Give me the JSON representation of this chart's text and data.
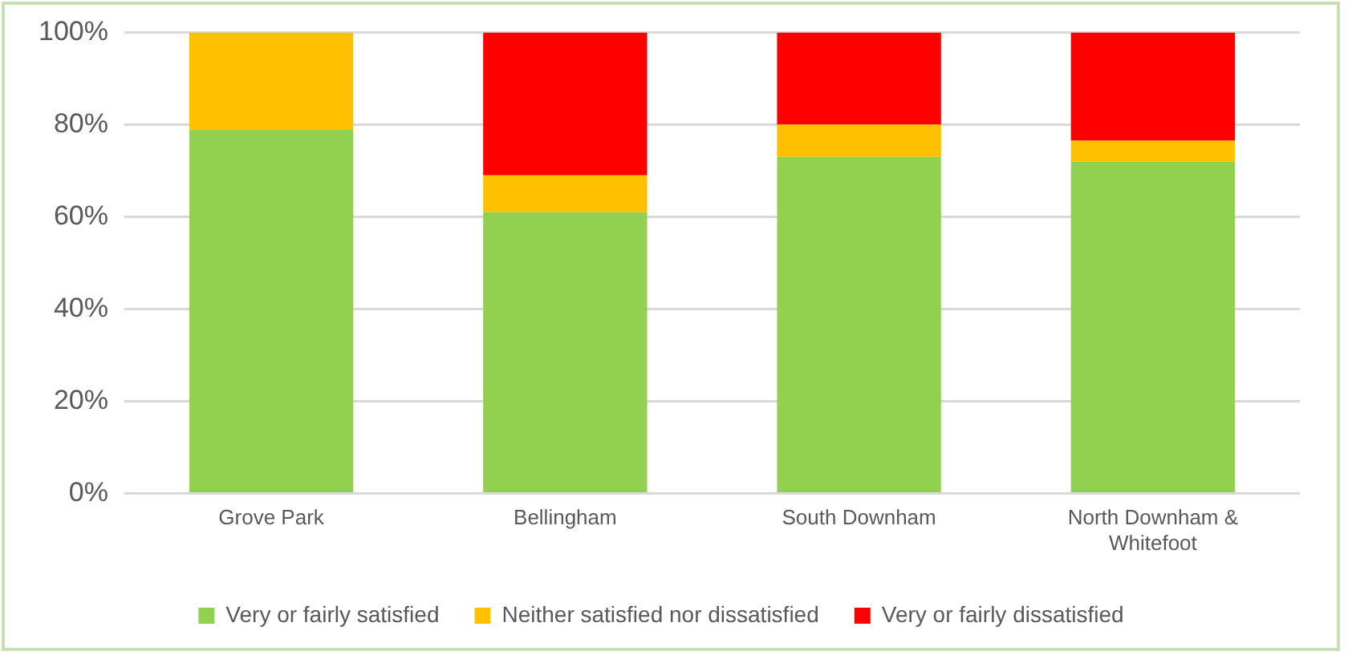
{
  "chart_data": {
    "type": "bar",
    "stacked": true,
    "categories": [
      "Grove Park",
      "Bellingham",
      "South Downham",
      "North Downham & Whitefoot"
    ],
    "series": [
      {
        "name": "Very or fairly satisfied",
        "color": "#92d050",
        "values": [
          79,
          61,
          73,
          72
        ]
      },
      {
        "name": "Neither satisfied nor dissatisfied",
        "color": "#ffc000",
        "values": [
          21,
          8,
          7,
          4.5
        ]
      },
      {
        "name": "Very or fairly dissatisfied",
        "color": "#ff0000",
        "values": [
          0,
          31,
          20,
          23.5
        ]
      }
    ],
    "ylim": [
      0,
      100
    ],
    "yticks": [
      {
        "value": 0,
        "label": "0%"
      },
      {
        "value": 20,
        "label": "20%"
      },
      {
        "value": 40,
        "label": "40%"
      },
      {
        "value": 60,
        "label": "60%"
      },
      {
        "value": 80,
        "label": "80%"
      },
      {
        "value": 100,
        "label": "100%"
      }
    ],
    "grid": "y",
    "legend": "bottom"
  }
}
